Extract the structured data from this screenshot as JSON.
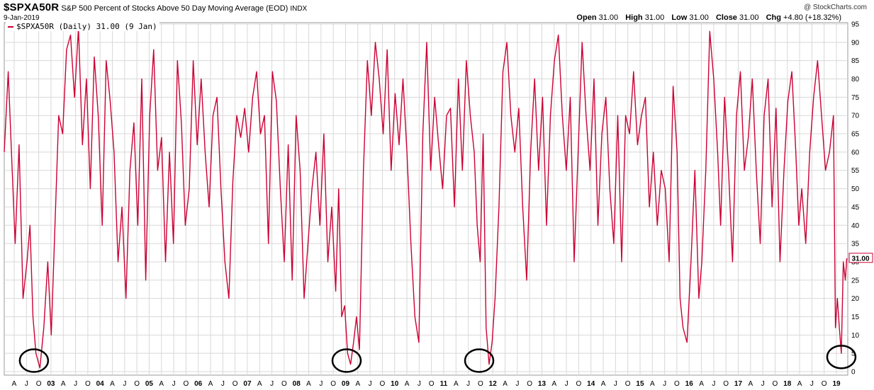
{
  "header": {
    "symbol": "$SPXA50R",
    "description": "S&P 500 Percent of Stocks Above 50 Day Moving Average (EOD)",
    "exchange": "INDX",
    "date": "9-Jan-2019",
    "watermark": "@ StockCharts.com"
  },
  "ohlc": {
    "open_label": "Open",
    "open": "31.00",
    "high_label": "High",
    "high": "31.00",
    "low_label": "Low",
    "low": "31.00",
    "close_label": "Close",
    "close": "31.00",
    "chg_label": "Chg",
    "chg": "+4.80 (+18.32%)"
  },
  "legend": {
    "label": "$SPXA50R (Daily) 31.00 (9 Jan)"
  },
  "last_value_label": "31.00",
  "colors": {
    "line": "#cc0033",
    "grid": "#d8d8d8",
    "annotation": "#000000"
  },
  "chart_data": {
    "type": "line",
    "ylim": [
      0,
      95
    ],
    "y_ticks": [
      0,
      5,
      10,
      15,
      20,
      25,
      30,
      35,
      40,
      45,
      50,
      55,
      60,
      65,
      70,
      75,
      80,
      85,
      90,
      95
    ],
    "xlim": [
      2002.0,
      2019.05
    ],
    "x_tick_labels": [
      "A",
      "J",
      "O",
      "03",
      "A",
      "J",
      "O",
      "04",
      "A",
      "J",
      "O",
      "05",
      "A",
      "J",
      "O",
      "06",
      "A",
      "J",
      "O",
      "07",
      "A",
      "J",
      "O",
      "08",
      "A",
      "J",
      "O",
      "09",
      "A",
      "J",
      "O",
      "10",
      "A",
      "J",
      "O",
      "11",
      "A",
      "J",
      "O",
      "12",
      "A",
      "J",
      "O",
      "13",
      "A",
      "J",
      "O",
      "14",
      "A",
      "J",
      "O",
      "15",
      "A",
      "J",
      "O",
      "16",
      "A",
      "J",
      "O",
      "17",
      "A",
      "J",
      "O",
      "18",
      "A",
      "J",
      "O",
      "19"
    ],
    "grid": true,
    "series": [
      {
        "name": "$SPXA50R (Daily)",
        "x": [
          2002.0,
          2002.08,
          2002.16,
          2002.22,
          2002.3,
          2002.38,
          2002.46,
          2002.52,
          2002.58,
          2002.64,
          2002.72,
          2002.8,
          2002.88,
          2002.95,
          2003.03,
          2003.1,
          2003.18,
          2003.26,
          2003.34,
          2003.42,
          2003.5,
          2003.58,
          2003.66,
          2003.74,
          2003.82,
          2003.9,
          2003.98,
          2004.06,
          2004.14,
          2004.22,
          2004.3,
          2004.38,
          2004.46,
          2004.54,
          2004.62,
          2004.7,
          2004.78,
          2004.86,
          2004.94,
          2005.02,
          2005.1,
          2005.18,
          2005.26,
          2005.34,
          2005.42,
          2005.5,
          2005.58,
          2005.66,
          2005.74,
          2005.82,
          2005.9,
          2005.98,
          2006.06,
          2006.14,
          2006.22,
          2006.3,
          2006.38,
          2006.46,
          2006.54,
          2006.62,
          2006.7,
          2006.78,
          2006.86,
          2006.94,
          2007.02,
          2007.1,
          2007.18,
          2007.26,
          2007.34,
          2007.42,
          2007.5,
          2007.58,
          2007.66,
          2007.74,
          2007.82,
          2007.9,
          2007.98,
          2008.06,
          2008.14,
          2008.22,
          2008.3,
          2008.38,
          2008.46,
          2008.54,
          2008.62,
          2008.7,
          2008.76,
          2008.82,
          2008.88,
          2008.94,
          2009.0,
          2009.06,
          2009.12,
          2009.18,
          2009.26,
          2009.34,
          2009.42,
          2009.5,
          2009.58,
          2009.66,
          2009.74,
          2009.82,
          2009.9,
          2009.98,
          2010.06,
          2010.14,
          2010.22,
          2010.3,
          2010.38,
          2010.46,
          2010.54,
          2010.62,
          2010.7,
          2010.78,
          2010.86,
          2010.94,
          2011.02,
          2011.1,
          2011.18,
          2011.26,
          2011.34,
          2011.42,
          2011.5,
          2011.56,
          2011.62,
          2011.68,
          2011.74,
          2011.8,
          2011.86,
          2011.92,
          2012.0,
          2012.08,
          2012.16,
          2012.24,
          2012.32,
          2012.4,
          2012.48,
          2012.56,
          2012.64,
          2012.72,
          2012.8,
          2012.88,
          2012.96,
          2013.04,
          2013.12,
          2013.2,
          2013.28,
          2013.36,
          2013.44,
          2013.52,
          2013.6,
          2013.68,
          2013.76,
          2013.84,
          2013.92,
          2014.0,
          2014.08,
          2014.16,
          2014.24,
          2014.32,
          2014.4,
          2014.48,
          2014.56,
          2014.64,
          2014.72,
          2014.8,
          2014.88,
          2014.96,
          2015.04,
          2015.12,
          2015.2,
          2015.28,
          2015.36,
          2015.44,
          2015.52,
          2015.6,
          2015.66,
          2015.72,
          2015.8,
          2015.88,
          2015.96,
          2016.04,
          2016.1,
          2016.18,
          2016.26,
          2016.34,
          2016.42,
          2016.48,
          2016.56,
          2016.64,
          2016.72,
          2016.8,
          2016.88,
          2016.96,
          2017.04,
          2017.12,
          2017.2,
          2017.28,
          2017.36,
          2017.44,
          2017.52,
          2017.6,
          2017.68,
          2017.76,
          2017.84,
          2017.92,
          2018.0,
          2018.06,
          2018.12,
          2018.2,
          2018.28,
          2018.36,
          2018.44,
          2018.52,
          2018.6,
          2018.68,
          2018.76,
          2018.8,
          2018.84,
          2018.88,
          2018.92,
          2018.96,
          2019.0,
          2019.03
        ],
        "y": [
          60,
          82,
          55,
          35,
          62,
          20,
          30,
          40,
          15,
          5,
          1,
          12,
          30,
          10,
          42,
          70,
          65,
          88,
          92,
          75,
          94,
          62,
          80,
          50,
          86,
          70,
          40,
          85,
          74,
          60,
          30,
          45,
          20,
          55,
          68,
          40,
          80,
          25,
          70,
          88,
          55,
          64,
          30,
          60,
          35,
          85,
          68,
          40,
          50,
          85,
          62,
          80,
          60,
          45,
          70,
          75,
          50,
          30,
          20,
          52,
          70,
          64,
          72,
          60,
          75,
          82,
          65,
          70,
          35,
          82,
          74,
          50,
          30,
          62,
          25,
          70,
          55,
          20,
          35,
          50,
          60,
          40,
          65,
          30,
          45,
          22,
          50,
          15,
          18,
          5,
          2,
          8,
          15,
          6,
          55,
          85,
          70,
          90,
          80,
          65,
          88,
          55,
          76,
          62,
          80,
          60,
          35,
          15,
          8,
          65,
          90,
          55,
          75,
          62,
          50,
          70,
          72,
          45,
          80,
          55,
          85,
          70,
          60,
          40,
          30,
          65,
          12,
          2,
          8,
          20,
          45,
          82,
          90,
          70,
          60,
          72,
          45,
          25,
          60,
          80,
          55,
          75,
          40,
          70,
          85,
          92,
          70,
          55,
          75,
          30,
          60,
          90,
          70,
          55,
          80,
          40,
          65,
          75,
          50,
          35,
          70,
          30,
          70,
          65,
          82,
          62,
          70,
          75,
          45,
          60,
          40,
          55,
          50,
          30,
          78,
          60,
          20,
          12,
          8,
          30,
          55,
          20,
          30,
          55,
          93,
          80,
          60,
          40,
          75,
          55,
          30,
          70,
          82,
          55,
          64,
          80,
          55,
          35,
          70,
          80,
          45,
          72,
          30,
          55,
          74,
          82,
          60,
          40,
          50,
          35,
          60,
          75,
          85,
          70,
          55,
          60,
          70,
          12,
          20,
          12,
          5,
          30,
          25,
          31
        ]
      }
    ],
    "annotations": [
      {
        "type": "circle",
        "x": 2002.6,
        "y": 3
      },
      {
        "type": "circle",
        "x": 2008.92,
        "y": 3
      },
      {
        "type": "circle",
        "x": 2011.6,
        "y": 3
      },
      {
        "type": "circle",
        "x": 2018.92,
        "y": 4
      }
    ]
  }
}
